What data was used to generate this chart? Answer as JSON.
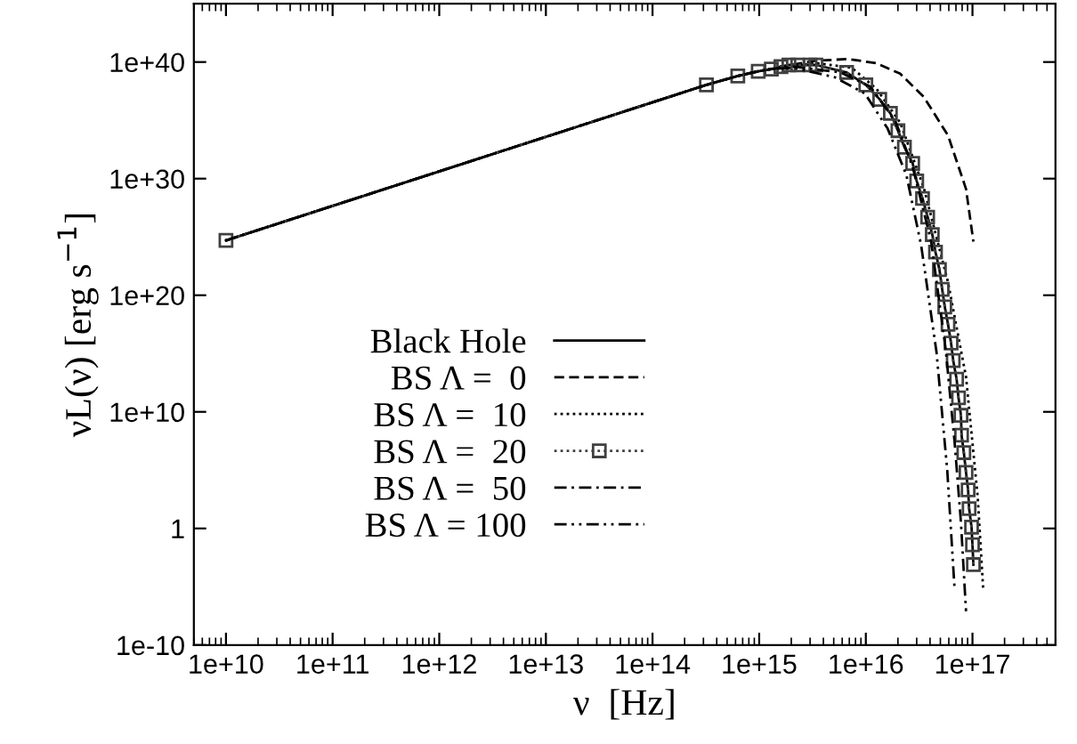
{
  "chart_data": {
    "type": "line",
    "xlabel": "ν  [Hz]",
    "ylabel": "νL(ν) [erg s$^{−1}$]",
    "log": "xy",
    "legend": "lower left",
    "grid": false,
    "xlim": [
      5000000000.0,
      6e+17
    ],
    "ylim": [
      1e-10,
      1e+45
    ],
    "xticks": [
      {
        "value": 10000000000.0,
        "label": "1e+10"
      },
      {
        "value": 100000000000.0,
        "label": "1e+11"
      },
      {
        "value": 1000000000000.0,
        "label": "1e+12"
      },
      {
        "value": 10000000000000.0,
        "label": "1e+13"
      },
      {
        "value": 100000000000000.0,
        "label": "1e+14"
      },
      {
        "value": 1000000000000000.0,
        "label": "1e+15"
      },
      {
        "value": 1e+16,
        "label": "1e+16"
      },
      {
        "value": 1e+17,
        "label": "1e+17"
      }
    ],
    "yticks": [
      {
        "value": 1e-10,
        "label": "1e-10"
      },
      1,
      {
        "value": 10000000000.0,
        "label": "1e+10"
      },
      {
        "value": 1e+20,
        "label": "1e+20"
      },
      {
        "value": 1e+30,
        "label": "1e+30"
      },
      {
        "value": 1e+40,
        "label": "1e+40"
      }
    ],
    "series": [
      {
        "name": "Black Hole",
        "color": "#000000",
        "line_style": "solid",
        "marker": "none",
        "x": [
          10000000000.0,
          320000000000000.0,
          630000000000000.0,
          980000000000000.0,
          1300000000000000.0,
          1600000000000000.0,
          1900000000000000.0,
          2300000000000000.0,
          3000000000000000.0,
          3400000000000000.0,
          6600000000000000.0,
          1e+16,
          1.35e+16,
          1.7e+16,
          2e+16,
          2.3e+16,
          2.75e+16,
          3e+16,
          3.4e+16,
          3.8e+16,
          4.2e+16,
          4.5e+16,
          4.9e+16,
          5.2e+16,
          5.5e+16,
          5.9e+16,
          6.3e+16,
          6.6e+16,
          7.1e+16,
          7.4e+16,
          7.8e+16,
          7.9e+16,
          8.3e+16,
          8.7e+16,
          9.1e+16,
          9.3e+16,
          9.8e+16,
          1e+17,
          1.02e+17
        ],
        "values": [
          5e+24,
          1.1e+38,
          6.3e+38,
          1.6e+39,
          2.5e+39,
          4e+39,
          5.6e+39,
          5.6e+39,
          5.6e+39,
          5.6e+39,
          1.3e+39,
          1.1e+38,
          6.3e+36,
          4e+35,
          1.3e+34,
          5e+32,
          2e+31,
          6.3e+29,
          2e+28,
          5e+26,
          1.6e+25,
          5e+23,
          1.6e+22,
          3.2e+20,
          1e+19,
          3.2e+17,
          7900000000000000.0,
          250000000000000.0,
          6300000000000.0,
          160000000000.0,
          5000000000.0,
          100000000.0,
          3200000.0,
          63000.0,
          2000.0,
          50,
          1.3,
          0.04,
          0.00079
        ]
      },
      {
        "name": "BS Λ =  0",
        "color": "#000000",
        "line_style": "dashed",
        "marker": "none",
        "x": [
          10000000000.0,
          320000000000000.0,
          630000000000000.0,
          980000000000000.0,
          1300000000000000.0,
          1600000000000000.0,
          3400000000000000.0,
          6800000000000000.0,
          1.26e+16,
          2.1e+16,
          3.5e+16,
          5.9e+16,
          8.7e+16,
          1.02e+17
        ],
        "values": [
          5e+24,
          1.1e+38,
          6.3e+38,
          1.6e+39,
          2.5e+39,
          4e+39,
          1.3e+40,
          1.8e+40,
          7.9e+39,
          1e+39,
          1e+37,
          5e+33,
          1.3e+29,
          4e+24
        ]
      },
      {
        "name": "BS Λ =  10",
        "color": "#000000",
        "line_style": "dotted",
        "marker": "none",
        "x": [
          10000000000.0,
          320000000000000.0,
          630000000000000.0,
          980000000000000.0,
          1300000000000000.0,
          1600000000000000.0,
          3500000000000000.0,
          7400000000000000.0,
          1.26e+16,
          2.1e+16,
          3.5e+16,
          5.9e+16,
          8.7e+16,
          1.12e+17,
          1.26e+17
        ],
        "values": [
          5e+24,
          1.1e+38,
          6.3e+38,
          1.6e+39,
          2.5e+39,
          4e+39,
          7.9e+39,
          3.2e+39,
          5e+37,
          6.3e+34,
          1.6e+29,
          1.3e+21,
          10000000000000.0,
          500.0,
          6.3e-06
        ]
      },
      {
        "name": "BS Λ =  20",
        "color": "#404040",
        "line_style": "dotted",
        "marker": "square",
        "x": [
          10000000000.0,
          320000000000000.0,
          630000000000000.0,
          980000000000000.0,
          1300000000000000.0,
          1600000000000000.0,
          1900000000000000.0,
          2300000000000000.0,
          3000000000000000.0,
          3400000000000000.0,
          6600000000000000.0,
          1e+16,
          1.35e+16,
          1.7e+16,
          2e+16,
          2.3e+16,
          2.75e+16,
          3e+16,
          3.4e+16,
          3.8e+16,
          4.2e+16,
          4.5e+16,
          4.9e+16,
          5.2e+16,
          5.5e+16,
          5.9e+16,
          6.3e+16,
          6.6e+16,
          7.1e+16,
          7.4e+16,
          7.8e+16,
          7.9e+16,
          8.3e+16,
          8.7e+16,
          9.1e+16,
          9.3e+16,
          9.8e+16,
          1e+17,
          1.02e+17
        ],
        "values": [
          5e+24,
          1.1e+38,
          6.3e+38,
          1.6e+39,
          2.5e+39,
          4e+39,
          5.6e+39,
          5.6e+39,
          5.6e+39,
          5.6e+39,
          1.3e+39,
          1.1e+38,
          6.3e+36,
          4e+35,
          1.3e+34,
          5e+32,
          2e+31,
          6.3e+29,
          2e+28,
          5e+26,
          1.6e+25,
          5e+23,
          1.6e+22,
          3.2e+20,
          1e+19,
          3.2e+17,
          7900000000000000.0,
          250000000000000.0,
          6300000000000.0,
          160000000000.0,
          5000000000.0,
          100000000.0,
          3200000.0,
          63000.0,
          2000.0,
          50,
          1.3,
          0.04,
          0.00079
        ]
      },
      {
        "name": "BS Λ =  50",
        "color": "#000000",
        "line_style": "dashdot",
        "marker": "none",
        "x": [
          10000000000.0,
          320000000000000.0,
          630000000000000.0,
          980000000000000.0,
          1300000000000000.0,
          2100000000000000.0,
          5800000000000000.0,
          1.1e+16,
          1.9e+16,
          2.75e+16,
          4.1e+16,
          5.6e+16,
          6.8e+16,
          7.8e+16,
          8.7e+16
        ],
        "values": [
          5e+24,
          1.1e+38,
          6.3e+38,
          1.6e+39,
          2.5e+39,
          4e+39,
          1.3e+39,
          7.9e+37,
          7.9e+34,
          1e+31,
          4e+24,
          2500000000000000.0,
          25000000.0,
          3.2,
          7.9e-08
        ]
      },
      {
        "name": "BS Λ = 100",
        "color": "#000000",
        "line_style": "dashdotdot",
        "marker": "none",
        "x": [
          10000000000.0,
          320000000000000.0,
          630000000000000.0,
          980000000000000.0,
          1300000000000000.0,
          2100000000000000.0,
          5100000000000000.0,
          9800000000000000.0,
          1.6e+16,
          2.4e+16,
          3.3e+16,
          4.6e+16,
          5.8e+16,
          6.8e+16
        ],
        "values": [
          5e+24,
          1.1e+38,
          6.3e+38,
          1.6e+39,
          2.5e+39,
          3.2e+39,
          5e+38,
          2e+37,
          2e+34,
          2e+30,
          2e+24,
          1300000000000000.0,
          100000.0,
          6.3e-06
        ]
      }
    ]
  }
}
